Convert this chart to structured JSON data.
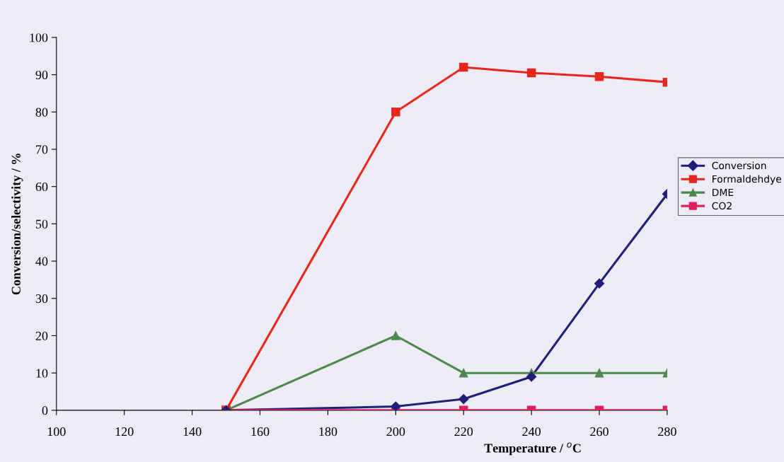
{
  "chart_data": {
    "type": "line",
    "xlabel": "Temperature / $^{o}$C",
    "ylabel": "Conversion/selectivity / %",
    "x": [
      150,
      200,
      220,
      240,
      260,
      280
    ],
    "series": [
      {
        "name": "Conversion",
        "color": "#1f1f7a",
        "marker": "diamond",
        "values": [
          0,
          1,
          3,
          9,
          34,
          58
        ]
      },
      {
        "name": "Formaldehdye",
        "color": "#e8261c",
        "marker": "square",
        "values": [
          0,
          80,
          92,
          90.5,
          89.5,
          88
        ]
      },
      {
        "name": "DME",
        "color": "#4a8a4a",
        "marker": "triangle",
        "values": [
          0,
          20,
          10,
          10,
          10,
          10
        ]
      },
      {
        "name": "CO2",
        "color": "#e0205a",
        "marker": "square",
        "values": [
          0,
          0,
          0,
          0,
          0,
          0
        ]
      }
    ],
    "xlim": [
      100,
      280
    ],
    "xticks": [
      100,
      120,
      140,
      160,
      180,
      200,
      220,
      240,
      260,
      280
    ],
    "ylim": [
      0,
      100
    ],
    "yticks": [
      0,
      10,
      20,
      30,
      40,
      50,
      60,
      70,
      80,
      90,
      100
    ],
    "line_style": "solid",
    "grid": false,
    "legend": "right"
  }
}
